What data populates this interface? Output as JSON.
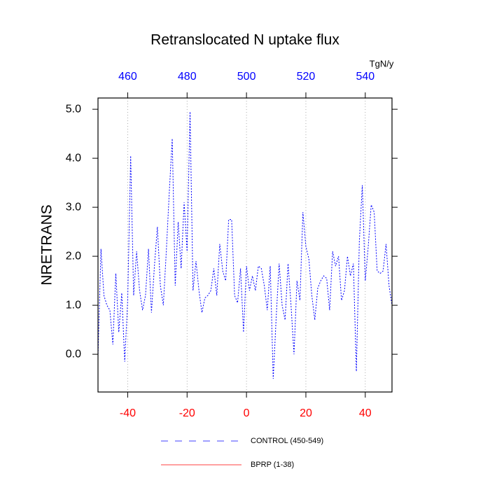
{
  "chart_data": {
    "type": "line",
    "title": "Retranslocated N uptake flux",
    "y_label": "NRETRANS",
    "x2_label": "TgN/y",
    "x": [
      -50,
      -49,
      -48,
      -47,
      -46,
      -45,
      -44,
      -43,
      -42,
      -41,
      -40,
      -39,
      -38,
      -37,
      -36,
      -35,
      -34,
      -33,
      -32,
      -31,
      -30,
      -29,
      -28,
      -27,
      -26,
      -25,
      -24,
      -23,
      -22,
      -21,
      -20,
      -19,
      -18,
      -17,
      -16,
      -15,
      -14,
      -13,
      -12,
      -11,
      -10,
      -9,
      -8,
      -7,
      -6,
      -5,
      -4,
      -3,
      -2,
      -1,
      0,
      1,
      2,
      3,
      4,
      5,
      6,
      7,
      8,
      9,
      10,
      11,
      12,
      13,
      14,
      15,
      16,
      17,
      18,
      19,
      20,
      21,
      22,
      23,
      24,
      25,
      26,
      27,
      28,
      29,
      30,
      31,
      32,
      33,
      34,
      35,
      36,
      37,
      38,
      39,
      40,
      41,
      42,
      43,
      44,
      45,
      46,
      47,
      48,
      49
    ],
    "series": [
      {
        "name": "CONTROL (450-549)",
        "color": "#0000ff",
        "dash": true,
        "values": [
          -0.05,
          2.15,
          1.2,
          1.0,
          0.9,
          0.2,
          1.65,
          0.45,
          1.25,
          -0.15,
          1.1,
          4.05,
          1.2,
          2.1,
          1.3,
          0.9,
          1.2,
          2.15,
          0.85,
          1.8,
          2.6,
          1.4,
          1.0,
          2.1,
          3.3,
          4.4,
          1.4,
          2.7,
          1.75,
          3.1,
          2.1,
          4.95,
          1.3,
          1.9,
          1.3,
          0.85,
          1.15,
          1.2,
          1.3,
          1.75,
          1.2,
          2.25,
          1.7,
          1.5,
          2.75,
          2.75,
          1.2,
          1.05,
          1.75,
          0.45,
          1.8,
          1.3,
          1.6,
          1.3,
          1.8,
          1.75,
          1.4,
          0.9,
          1.8,
          -0.5,
          0.75,
          1.85,
          1.0,
          0.7,
          1.85,
          1.0,
          0.0,
          1.5,
          1.1,
          2.9,
          2.2,
          1.95,
          1.2,
          0.7,
          1.35,
          1.5,
          1.6,
          1.55,
          0.9,
          2.1,
          1.8,
          2.0,
          1.1,
          1.3,
          2.0,
          1.6,
          1.85,
          -0.35,
          2.3,
          3.45,
          1.5,
          2.2,
          3.05,
          2.9,
          1.7,
          1.65,
          1.7,
          2.25,
          1.4,
          1.0
        ]
      }
    ],
    "legend_items": [
      {
        "name": "CONTROL (450-549)",
        "color": "#0000ff",
        "dash": true
      },
      {
        "name": "BPRP (1-38)",
        "color": "#ff0000",
        "dash": false
      }
    ],
    "xlim": [
      -50,
      49
    ],
    "xticks": [
      -40,
      -20,
      0,
      20,
      40
    ],
    "xtick_color": "#ff0000",
    "x2lim": [
      450,
      549
    ],
    "x2ticks": [
      460,
      480,
      500,
      520,
      540
    ],
    "x2tick_color": "#0000ff",
    "ylim": [
      -0.77,
      5.23
    ],
    "yticks": [
      {
        "value": 0,
        "label": "0.0"
      },
      {
        "value": 1,
        "label": "1.0"
      },
      {
        "value": 2,
        "label": "2.0"
      },
      {
        "value": 3,
        "label": "3.0"
      },
      {
        "value": 4,
        "label": "4.0"
      },
      {
        "value": 5,
        "label": "5.0"
      }
    ],
    "grid": true
  }
}
